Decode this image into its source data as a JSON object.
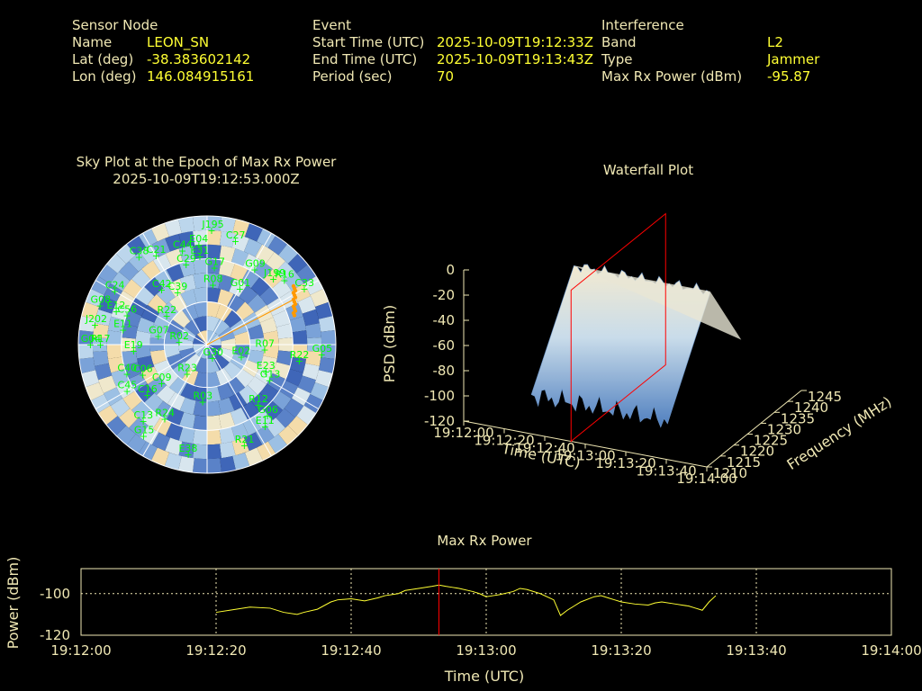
{
  "header": {
    "sensor": {
      "heading": "Sensor Node",
      "rows": [
        {
          "label": "Name",
          "value": "LEON_SN"
        },
        {
          "label": "Lat (deg)",
          "value": "-38.383602142"
        },
        {
          "label": "Lon (deg)",
          "value": "146.084915161"
        }
      ]
    },
    "event": {
      "heading": "Event",
      "rows": [
        {
          "label": "Start Time (UTC)",
          "value": "2025-10-09T19:12:33Z"
        },
        {
          "label": "End Time (UTC)",
          "value": "2025-10-09T19:13:43Z"
        },
        {
          "label": "Period (sec)",
          "value": "70"
        }
      ]
    },
    "interference": {
      "heading": "Interference",
      "rows": [
        {
          "label": "Band",
          "value": "L2"
        },
        {
          "label": "Type",
          "value": "Jammer"
        },
        {
          "label": "Max Rx Power (dBm)",
          "value": "-95.87"
        }
      ]
    }
  },
  "colors": {
    "label_text": "#f0e8b4",
    "value_text": "#ffff33",
    "satellite_text": "#00ff00",
    "marker_line": "#ff0000",
    "power_line": "#ffff33",
    "jammer_track": "#ff9900"
  },
  "chart_data": [
    {
      "type": "scatter",
      "chart": "sky-plot",
      "title": "Sky Plot at the Epoch of Max Rx Power",
      "subtitle": "2025-10-09T19:12:53.000Z",
      "satellites": [
        {
          "name": "J195",
          "az": 2,
          "el": 10
        },
        {
          "name": "C27",
          "az": 15,
          "el": 15
        },
        {
          "name": "E04",
          "az": 355,
          "el": 20
        },
        {
          "name": "C44",
          "az": 345,
          "el": 22
        },
        {
          "name": "C21",
          "az": 330,
          "el": 18
        },
        {
          "name": "G09",
          "az": 32,
          "el": 28
        },
        {
          "name": "E31",
          "az": 355,
          "el": 28
        },
        {
          "name": "G17",
          "az": 5,
          "el": 36
        },
        {
          "name": "C38",
          "az": 322,
          "el": 12
        },
        {
          "name": "C29",
          "az": 345,
          "el": 32
        },
        {
          "name": "G01",
          "az": 30,
          "el": 45
        },
        {
          "name": "J199",
          "az": 45,
          "el": 25
        },
        {
          "name": "R16",
          "az": 50,
          "el": 20
        },
        {
          "name": "C33",
          "az": 60,
          "el": 12
        },
        {
          "name": "R08",
          "az": 5,
          "el": 48
        },
        {
          "name": "C24",
          "az": 300,
          "el": 15
        },
        {
          "name": "C39",
          "az": 330,
          "el": 48
        },
        {
          "name": "C42",
          "az": 320,
          "el": 40
        },
        {
          "name": "G08",
          "az": 290,
          "el": 10
        },
        {
          "name": "E12",
          "az": 290,
          "el": 22
        },
        {
          "name": "J202",
          "az": 280,
          "el": 10
        },
        {
          "name": "C56",
          "az": 290,
          "el": 30
        },
        {
          "name": "R22",
          "az": 305,
          "el": 55
        },
        {
          "name": "R17",
          "az": 270,
          "el": 15
        },
        {
          "name": "E11",
          "az": 280,
          "el": 30
        },
        {
          "name": "E19",
          "az": 265,
          "el": 38
        },
        {
          "name": "G07",
          "az": 280,
          "el": 55
        },
        {
          "name": "G04",
          "az": 270,
          "el": 8
        },
        {
          "name": "R02",
          "az": 275,
          "el": 70
        },
        {
          "name": "C40",
          "az": 250,
          "el": 30
        },
        {
          "name": "C06",
          "az": 245,
          "el": 40
        },
        {
          "name": "C45",
          "az": 240,
          "el": 25
        },
        {
          "name": "C09",
          "az": 230,
          "el": 48
        },
        {
          "name": "C16",
          "az": 230,
          "el": 35
        },
        {
          "name": "R23",
          "az": 215,
          "el": 65
        },
        {
          "name": "C13",
          "az": 220,
          "el": 20
        },
        {
          "name": "G15",
          "az": 215,
          "el": 12
        },
        {
          "name": "R24",
          "az": 210,
          "el": 30
        },
        {
          "name": "R03",
          "az": 185,
          "el": 50
        },
        {
          "name": "G30",
          "az": 160,
          "el": 80
        },
        {
          "name": "E02",
          "az": 110,
          "el": 65
        },
        {
          "name": "R07",
          "az": 95,
          "el": 50
        },
        {
          "name": "E23",
          "az": 115,
          "el": 45
        },
        {
          "name": "G13",
          "az": 120,
          "el": 40
        },
        {
          "name": "R22",
          "az": 100,
          "el": 25
        },
        {
          "name": "G05",
          "az": 95,
          "el": 10
        },
        {
          "name": "R12",
          "az": 140,
          "el": 35
        },
        {
          "name": "G06",
          "az": 140,
          "el": 25
        },
        {
          "name": "E11",
          "az": 145,
          "el": 20
        },
        {
          "name": "E38",
          "az": 190,
          "el": 12
        },
        {
          "name": "R21",
          "az": 160,
          "el": 15
        }
      ]
    },
    {
      "type": "area",
      "chart": "waterfall",
      "title": "Waterfall Plot",
      "xlabel": "Time (UTC)",
      "ylabel": "Frequency (MHz)",
      "zlabel": "PSD (dBm)",
      "x_ticks": [
        "19:12:00",
        "19:12:20",
        "19:12:40",
        "19:13:00",
        "19:13:20",
        "19:13:40",
        "19:14:00"
      ],
      "y_ticks": [
        1210,
        1215,
        1220,
        1225,
        1230,
        1235,
        1240,
        1245
      ],
      "z_ticks": [
        0,
        -20,
        -40,
        -60,
        -80,
        -100,
        -120
      ],
      "xlim": [
        "19:12:00",
        "19:14:00"
      ],
      "ylim": [
        1210,
        1245
      ],
      "zlim": [
        -120,
        0
      ],
      "peak_psd": -25,
      "marker_time": "19:12:53"
    },
    {
      "type": "line",
      "chart": "max-rx-power",
      "title": "Max Rx Power",
      "xlabel": "Time (UTC)",
      "ylabel": "Power (dBm)",
      "x_ticks": [
        "19:12:00",
        "19:12:20",
        "19:12:40",
        "19:13:00",
        "19:13:20",
        "19:13:40",
        "19:14:00"
      ],
      "y_ticks": [
        -100,
        -120
      ],
      "xlim_sec": [
        0,
        120
      ],
      "ylim": [
        -120,
        -88
      ],
      "marker_sec": 53,
      "series": [
        {
          "x": [
            20,
            22,
            25,
            28,
            30,
            32,
            33,
            35,
            37,
            38,
            40,
            42,
            44,
            45,
            47,
            48,
            50,
            52,
            53,
            54,
            55,
            56,
            58,
            59,
            60,
            61,
            62,
            64,
            65,
            66,
            68,
            70,
            71,
            72,
            73,
            74,
            76,
            77,
            78,
            79,
            80,
            82,
            84,
            85,
            86,
            88,
            89,
            90,
            91,
            92,
            93,
            94
          ],
          "values": [
            -109,
            -108,
            -106.5,
            -107,
            -109,
            -110,
            -109,
            -107.5,
            -104,
            -103,
            -102.5,
            -103.5,
            -102,
            -101,
            -100,
            -98.5,
            -97.5,
            -96.5,
            -95.9,
            -96.5,
            -97,
            -97.5,
            -99,
            -100,
            -101.5,
            -101,
            -100.5,
            -99,
            -97.5,
            -98,
            -100,
            -103,
            -110.5,
            -108,
            -106,
            -104,
            -101.5,
            -101,
            -102,
            -103,
            -104,
            -105,
            -105.5,
            -104.5,
            -104,
            -105,
            -105.5,
            -106,
            -107,
            -108,
            -104,
            -101
          ]
        }
      ]
    }
  ]
}
